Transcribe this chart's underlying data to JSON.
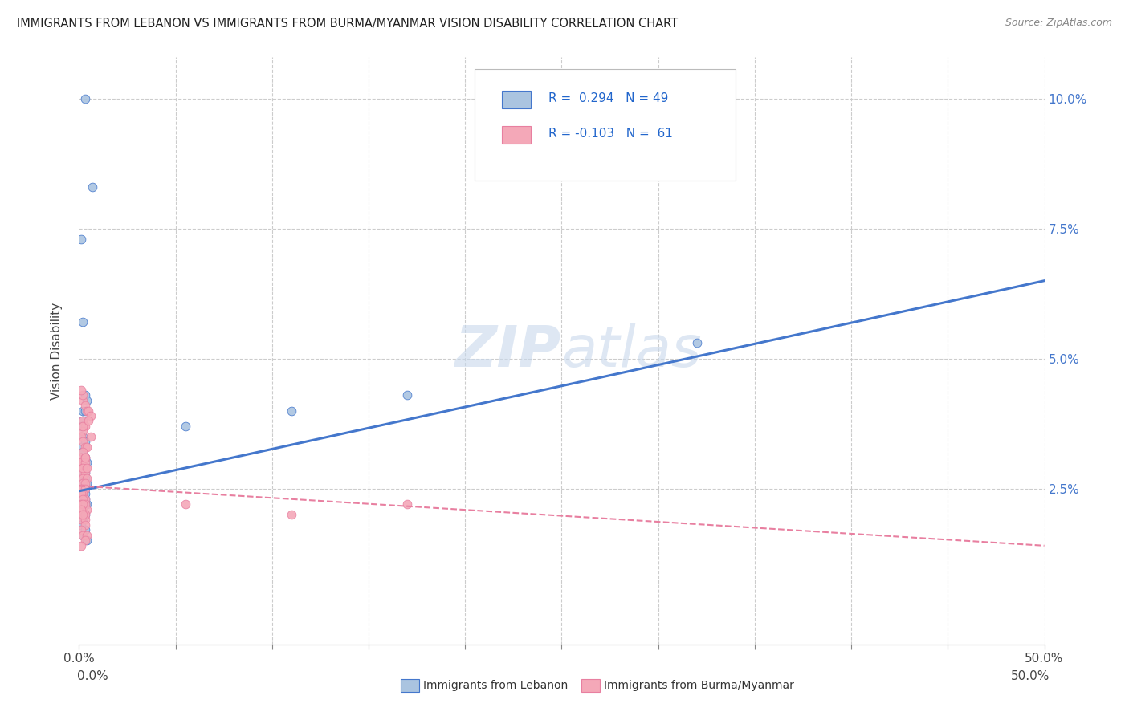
{
  "title": "IMMIGRANTS FROM LEBANON VS IMMIGRANTS FROM BURMA/MYANMAR VISION DISABILITY CORRELATION CHART",
  "source": "Source: ZipAtlas.com",
  "ylabel": "Vision Disability",
  "yticks": [
    0.0,
    0.025,
    0.05,
    0.075,
    0.1
  ],
  "ytick_labels": [
    "",
    "2.5%",
    "5.0%",
    "7.5%",
    "10.0%"
  ],
  "xticks": [
    0.0,
    0.05,
    0.1,
    0.15,
    0.2,
    0.25,
    0.3,
    0.35,
    0.4,
    0.45,
    0.5
  ],
  "xlim": [
    0.0,
    0.5
  ],
  "ylim": [
    -0.005,
    0.108
  ],
  "watermark": "ZIPatlas",
  "color_lebanon": "#aac4e0",
  "color_burma": "#f4a8b8",
  "color_lebanon_line": "#4477cc",
  "color_burma_line": "#e87fa0",
  "leb_line_start_x": 0.0,
  "leb_line_start_y": 0.0245,
  "leb_line_end_x": 0.5,
  "leb_line_end_y": 0.065,
  "bur_line_start_x": 0.0,
  "bur_line_start_y": 0.0255,
  "bur_line_end_x": 0.5,
  "bur_line_end_y": 0.014,
  "scatter_lebanon_x": [
    0.003,
    0.007,
    0.001,
    0.002,
    0.003,
    0.004,
    0.002,
    0.003,
    0.002,
    0.001,
    0.002,
    0.003,
    0.001,
    0.002,
    0.003,
    0.004,
    0.002,
    0.001,
    0.003,
    0.002,
    0.001,
    0.003,
    0.002,
    0.004,
    0.002,
    0.003,
    0.002,
    0.001,
    0.003,
    0.002,
    0.001,
    0.003,
    0.002,
    0.004,
    0.002,
    0.001,
    0.003,
    0.002,
    0.001,
    0.003,
    0.055,
    0.11,
    0.17,
    0.32,
    0.002,
    0.001,
    0.003,
    0.002,
    0.004
  ],
  "scatter_lebanon_y": [
    0.1,
    0.083,
    0.073,
    0.057,
    0.043,
    0.042,
    0.04,
    0.04,
    0.038,
    0.037,
    0.035,
    0.034,
    0.033,
    0.032,
    0.031,
    0.03,
    0.03,
    0.029,
    0.028,
    0.028,
    0.027,
    0.027,
    0.026,
    0.026,
    0.025,
    0.025,
    0.025,
    0.024,
    0.024,
    0.024,
    0.023,
    0.023,
    0.023,
    0.022,
    0.022,
    0.022,
    0.022,
    0.021,
    0.021,
    0.02,
    0.037,
    0.04,
    0.043,
    0.053,
    0.019,
    0.018,
    0.017,
    0.016,
    0.015
  ],
  "scatter_burma_x": [
    0.002,
    0.003,
    0.004,
    0.005,
    0.006,
    0.002,
    0.003,
    0.002,
    0.001,
    0.002,
    0.003,
    0.004,
    0.002,
    0.001,
    0.003,
    0.002,
    0.001,
    0.003,
    0.002,
    0.001,
    0.003,
    0.002,
    0.004,
    0.002,
    0.003,
    0.002,
    0.001,
    0.003,
    0.002,
    0.001,
    0.003,
    0.002,
    0.001,
    0.003,
    0.002,
    0.004,
    0.002,
    0.001,
    0.003,
    0.055,
    0.11,
    0.17,
    0.003,
    0.001,
    0.002,
    0.004,
    0.003,
    0.002,
    0.005,
    0.006,
    0.002,
    0.001,
    0.003,
    0.002,
    0.004,
    0.003,
    0.002,
    0.001,
    0.003,
    0.002,
    0.001
  ],
  "scatter_burma_y": [
    0.042,
    0.041,
    0.04,
    0.04,
    0.039,
    0.038,
    0.037,
    0.036,
    0.035,
    0.034,
    0.033,
    0.033,
    0.032,
    0.031,
    0.031,
    0.03,
    0.03,
    0.029,
    0.029,
    0.028,
    0.028,
    0.027,
    0.027,
    0.026,
    0.026,
    0.025,
    0.025,
    0.025,
    0.024,
    0.024,
    0.023,
    0.023,
    0.022,
    0.022,
    0.021,
    0.021,
    0.02,
    0.019,
    0.019,
    0.022,
    0.02,
    0.022,
    0.018,
    0.017,
    0.016,
    0.016,
    0.015,
    0.037,
    0.038,
    0.035,
    0.043,
    0.044,
    0.03,
    0.029,
    0.029,
    0.031,
    0.022,
    0.021,
    0.02,
    0.02,
    0.014
  ]
}
